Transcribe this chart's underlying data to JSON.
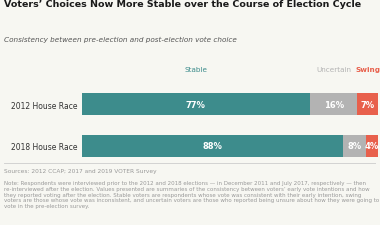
{
  "title": "Voters’ Choices Now More Stable over the Course of Election Cycle",
  "subtitle": "Consistency between pre-election and post-election vote choice",
  "categories": [
    "2012 House Race",
    "2018 House Race"
  ],
  "stable": [
    77,
    88
  ],
  "uncertain": [
    16,
    8
  ],
  "swing": [
    7,
    4
  ],
  "stable_color": "#3d8c8c",
  "uncertain_color": "#b3b3b3",
  "swing_color": "#e8604c",
  "legend_stable": "Stable",
  "legend_uncertain": "Uncertain",
  "legend_swing": "Swing",
  "source_text": "Sources: 2012 CCAP; 2017 and 2019 VOTER Survey",
  "note_text": "Note: Respondents were interviewed prior to the 2012 and 2018 elections — in December 2011 and July 2017, respectively — then re-interviewed after the election. Values presented are summaries of the consistency between voters’ early vote intentions and how they reported voting after the election. Stable voters are respondents whose vote was consistent with their early intention, swing voters are those whose vote was inconsistent, and uncertain voters are those who reported being unsure about how they were going to vote in the pre-election survey.",
  "title_fontsize": 6.8,
  "subtitle_fontsize": 5.2,
  "bar_label_fontsize": 6.0,
  "legend_fontsize": 5.2,
  "source_fontsize": 4.2,
  "cat_fontsize": 5.5,
  "bg_color": "#f7f7f2",
  "title_color": "#1a1a1a",
  "subtitle_color": "#555555",
  "cat_color": "#333333",
  "source_color": "#999999",
  "divider_color": "#cccccc"
}
